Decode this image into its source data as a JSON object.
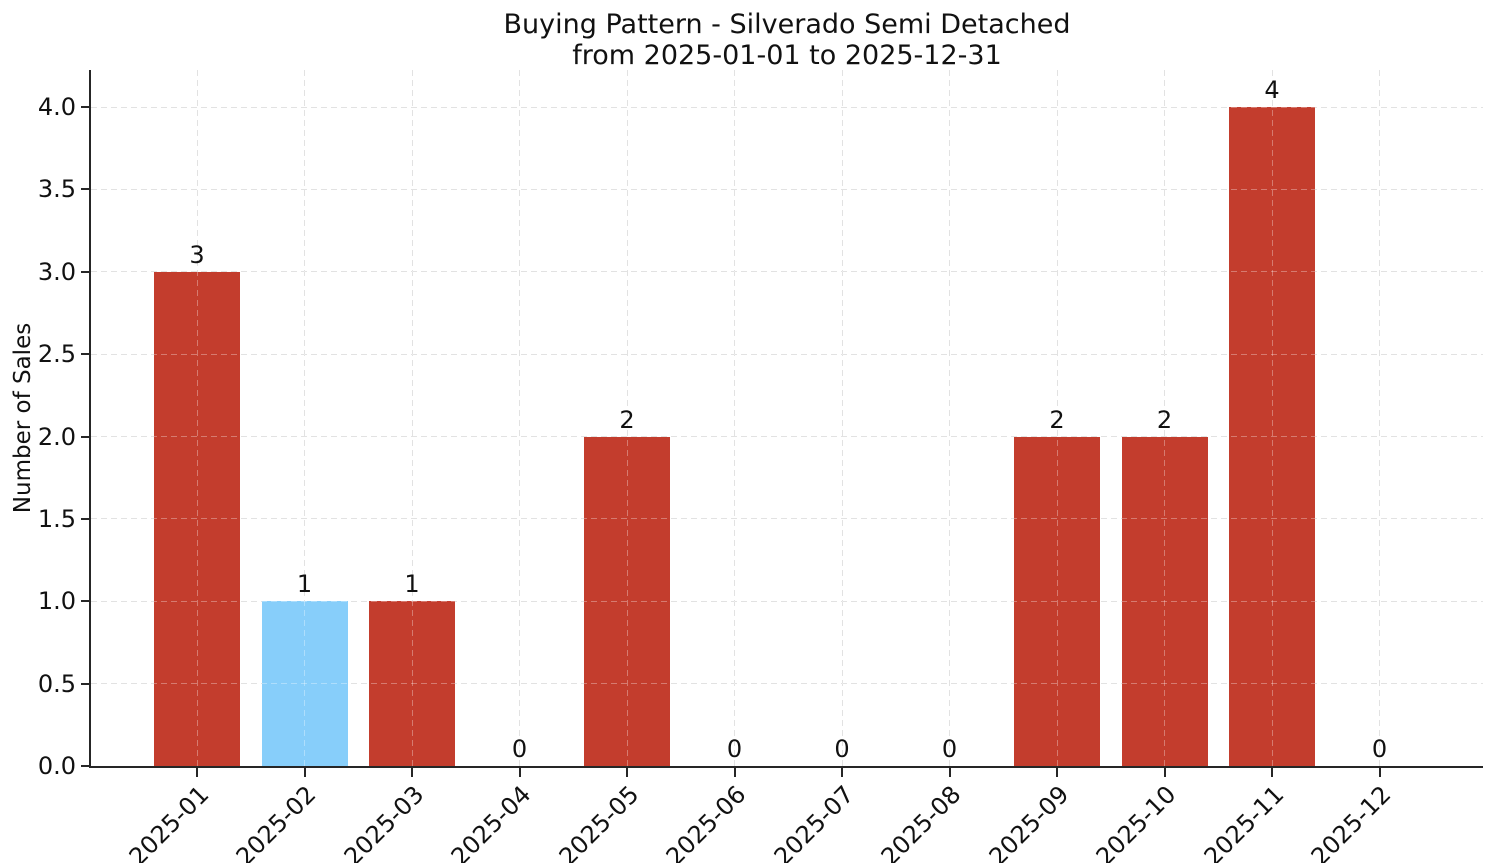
{
  "figure": {
    "background": "#ffffff"
  },
  "chart_data": {
    "type": "bar",
    "title": "Buying Pattern - Silverado Semi Detached",
    "subtitle": "from 2025-01-01 to 2025-12-31",
    "xlabel": "",
    "ylabel": "Number of Sales",
    "categories": [
      "2025-01",
      "2025-02",
      "2025-03",
      "2025-04",
      "2025-05",
      "2025-06",
      "2025-07",
      "2025-08",
      "2025-09",
      "2025-10",
      "2025-11",
      "2025-12"
    ],
    "values": [
      3,
      1,
      1,
      0,
      2,
      0,
      0,
      0,
      2,
      2,
      4,
      0
    ],
    "bar_value_labels": [
      "3",
      "1",
      "1",
      "0",
      "2",
      "0",
      "0",
      "0",
      "2",
      "2",
      "4",
      "0"
    ],
    "bar_colors": [
      "#c33d2d",
      "#87CEFA",
      "#c33d2d",
      "#c33d2d",
      "#c33d2d",
      "#c33d2d",
      "#c33d2d",
      "#c33d2d",
      "#c33d2d",
      "#c33d2d",
      "#c33d2d",
      "#c33d2d"
    ],
    "default_bar_color": "#c33d2d",
    "highlight_bar_color": "#87CEFA",
    "highlight_index": 1,
    "y_ticks": [
      "0.0",
      "0.5",
      "1.0",
      "1.5",
      "2.0",
      "2.5",
      "3.0",
      "3.5",
      "4.0"
    ],
    "ylim": [
      0,
      4.22
    ],
    "grid": true,
    "grid_linestyle": "dashed",
    "grid_color": "#d4d4d4",
    "axis_color": "#262626",
    "text_color": "#111111",
    "x_tick_rotation_deg": 45,
    "legend": null
  }
}
